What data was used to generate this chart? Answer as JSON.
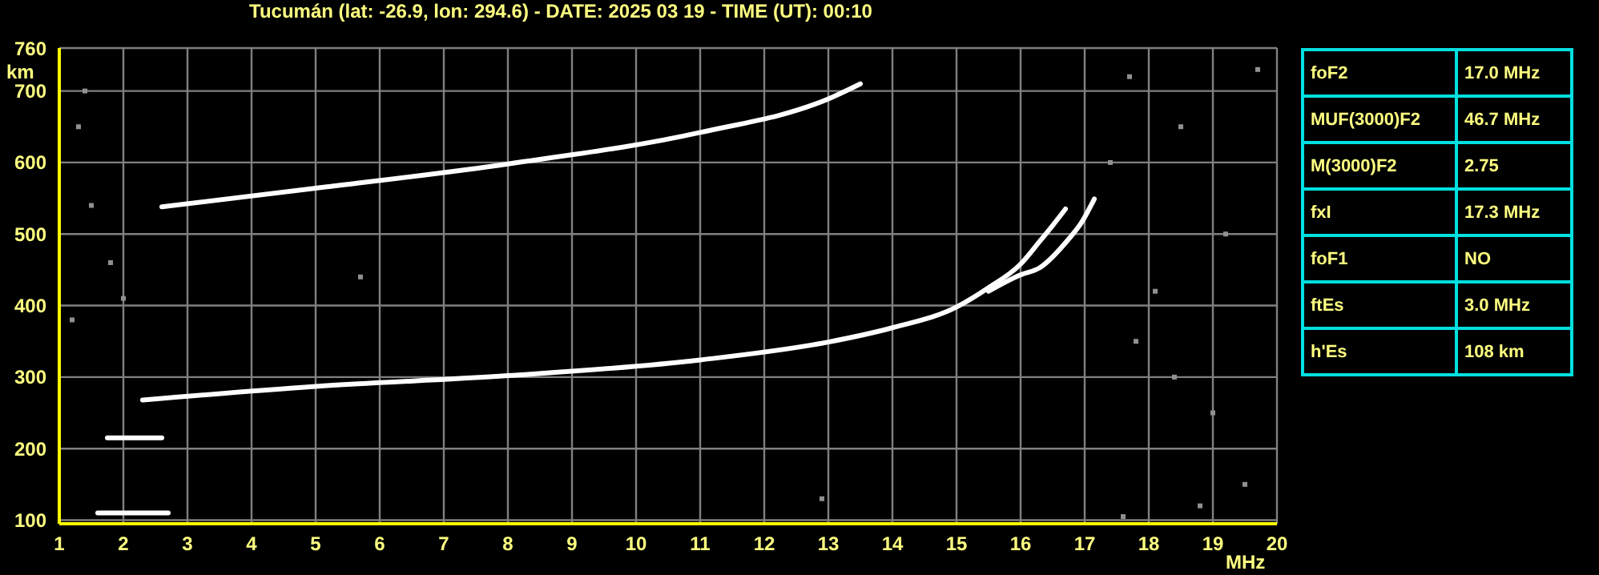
{
  "chart_data": [
    {
      "type": "line",
      "title": "Tucumán (lat: -26.9, lon: 294.6) - DATE: 2025 03 19 - TIME (UT): 00:10",
      "xlabel": "MHz",
      "ylabel": "km",
      "xlim": [
        1,
        20
      ],
      "xticks": [
        1,
        2,
        3,
        4,
        5,
        6,
        7,
        8,
        9,
        10,
        11,
        12,
        13,
        14,
        15,
        16,
        17,
        18,
        19,
        20
      ],
      "ylim": [
        95,
        760
      ],
      "yticks": [
        100,
        200,
        300,
        400,
        500,
        600,
        700,
        760
      ],
      "grid": true,
      "marker": "none",
      "series": [
        {
          "color": "#ffffff",
          "x": [
            1.6,
            2.7
          ],
          "values": [
            110,
            110
          ]
        },
        {
          "color": "#ffffff",
          "x": [
            1.75,
            2.6
          ],
          "values": [
            215,
            215
          ]
        },
        {
          "color": "#ffffff",
          "x": [
            2.3,
            5,
            8,
            11,
            13,
            14,
            15,
            15.5,
            16,
            16.3,
            16.5,
            16.7
          ],
          "values": [
            268,
            287,
            302,
            324,
            349,
            369,
            398,
            425,
            458,
            490,
            512,
            535
          ]
        },
        {
          "color": "#ffffff",
          "x": [
            15.5,
            16,
            16.3,
            16.75,
            16.95,
            17.15
          ],
          "values": [
            420,
            443,
            453,
            493,
            516,
            549
          ]
        },
        {
          "color": "#ffffff",
          "x": [
            2.6,
            5,
            8,
            11,
            13,
            13.5
          ],
          "values": [
            538,
            564,
            598,
            642,
            689,
            710
          ]
        },
        {
          "type": "scatter",
          "marker": "square",
          "color": "#909090",
          "x": [
            17.7,
            18.5,
            19.2,
            17.8,
            18.4,
            19.5,
            1.3,
            1.5,
            1.2,
            18.8,
            17.6,
            12.9,
            5.7,
            2.0,
            19.7,
            17.4,
            18.1,
            19.0,
            1.4,
            1.8
          ],
          "values": [
            720,
            650,
            500,
            350,
            300,
            150,
            650,
            540,
            380,
            120,
            105,
            130,
            440,
            410,
            730,
            600,
            420,
            250,
            700,
            460
          ]
        }
      ]
    },
    {
      "type": "other",
      "categories": [
        "foF2",
        "MUF(3000)F2",
        "M(3000)F2",
        "fxI",
        "foF1",
        "ftEs",
        "h'Es"
      ],
      "value_labels": [
        "17.0 MHz",
        "46.7 MHz",
        "2.75",
        "17.3 MHz",
        "NO",
        "3.0 MHz",
        "108 km"
      ]
    }
  ]
}
